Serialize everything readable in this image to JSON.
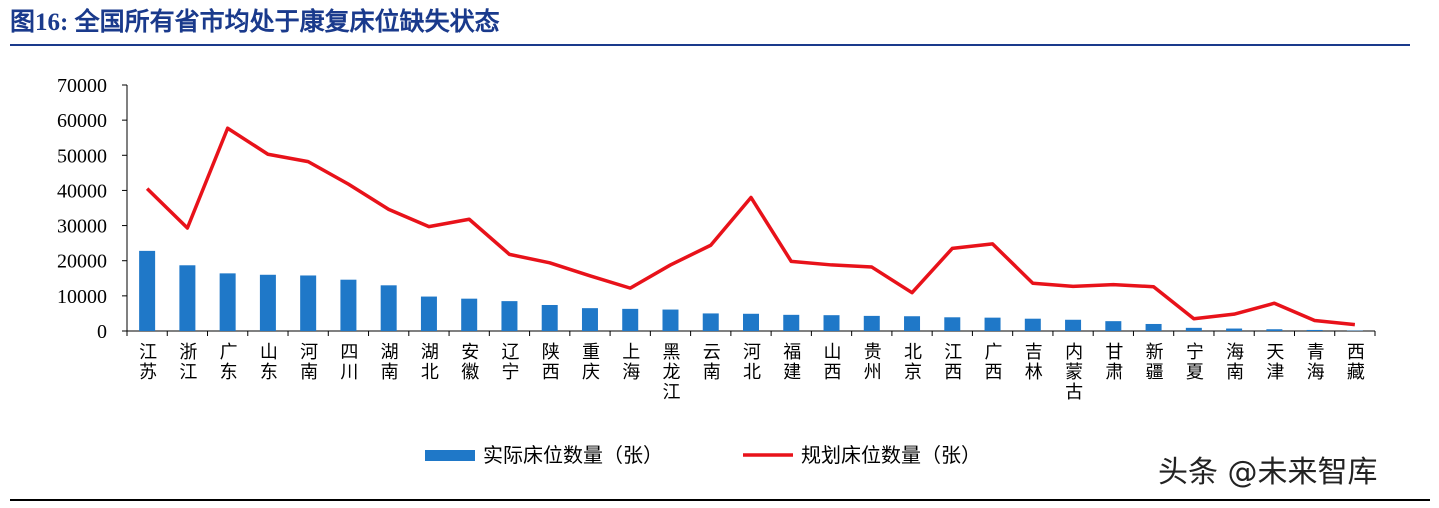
{
  "chart_data": {
    "type": "bar",
    "title": "图16: 全国所有省市均处于康复床位缺失状态",
    "annotation": "头条 @未来智库",
    "categories": [
      "江苏",
      "浙江",
      "广东",
      "山东",
      "河南",
      "四川",
      "湖南",
      "湖北",
      "安徽",
      "辽宁",
      "陕西",
      "重庆",
      "上海",
      "黑龙江",
      "云南",
      "河北",
      "福建",
      "山西",
      "贵州",
      "北京",
      "江西",
      "广西",
      "吉林",
      "内蒙古",
      "甘肃",
      "新疆",
      "宁夏",
      "海南",
      "天津",
      "青海",
      "西藏"
    ],
    "series": [
      {
        "name": "实际床位数量（张）",
        "type": "bar",
        "color": "#1f78c8",
        "values": [
          22800,
          18700,
          16400,
          16000,
          15800,
          14600,
          13000,
          9800,
          9200,
          8500,
          7400,
          6500,
          6300,
          6100,
          5000,
          4900,
          4600,
          4500,
          4300,
          4200,
          3900,
          3800,
          3500,
          3200,
          2800,
          2000,
          900,
          700,
          500,
          300,
          100
        ]
      },
      {
        "name": "规划床位数量（张）",
        "type": "line",
        "color": "#e8121a",
        "values": [
          40500,
          29300,
          57700,
          50300,
          48200,
          41800,
          34600,
          29700,
          31800,
          21800,
          19400,
          15700,
          12200,
          18800,
          24400,
          38000,
          19800,
          18800,
          18200,
          10900,
          23500,
          24800,
          13600,
          12700,
          13200,
          12600,
          3500,
          4800,
          7900,
          3000,
          1800
        ]
      }
    ],
    "ylim": [
      0,
      70000
    ],
    "yticks": [
      0,
      10000,
      20000,
      30000,
      40000,
      50000,
      60000,
      70000
    ]
  }
}
